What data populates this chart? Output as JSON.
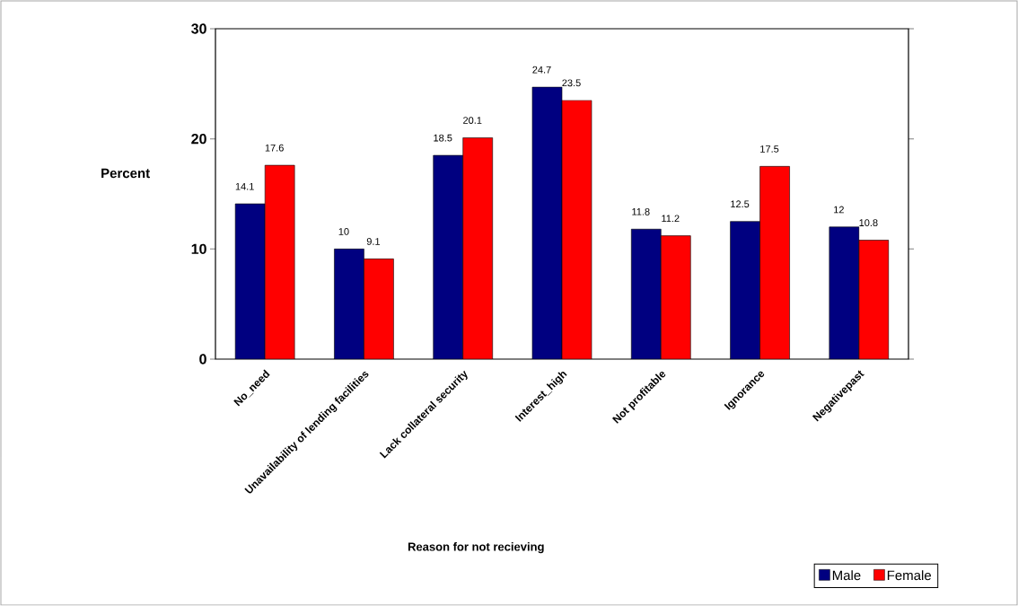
{
  "chart_data": {
    "type": "bar",
    "xlabel": "Reason for not recieving",
    "ylabel": "Percent",
    "categories": [
      "No_need",
      "Unavailability of lending facilities",
      "Lack collateral security",
      "Interest_high",
      "Not profitable",
      "Ignorance",
      "Negativepast"
    ],
    "series": [
      {
        "name": "Male",
        "color": "#000080",
        "values": [
          14.1,
          10,
          18.5,
          24.7,
          11.8,
          12.5,
          12
        ],
        "value_labels": [
          "14.1",
          "10",
          "18.5",
          "24.7",
          "11.8",
          "12.5",
          "12"
        ]
      },
      {
        "name": "Female",
        "color": "#ff0000",
        "values": [
          17.6,
          9.1,
          20.1,
          23.5,
          11.2,
          17.5,
          10.8
        ],
        "value_labels": [
          "17.6",
          "9.1",
          "20.1",
          "23.5",
          "11.2",
          "17.5",
          "10.8"
        ]
      }
    ],
    "ylim": [
      0,
      30
    ],
    "yticks": [
      0,
      10,
      20,
      30
    ],
    "legend": "bottom right"
  }
}
